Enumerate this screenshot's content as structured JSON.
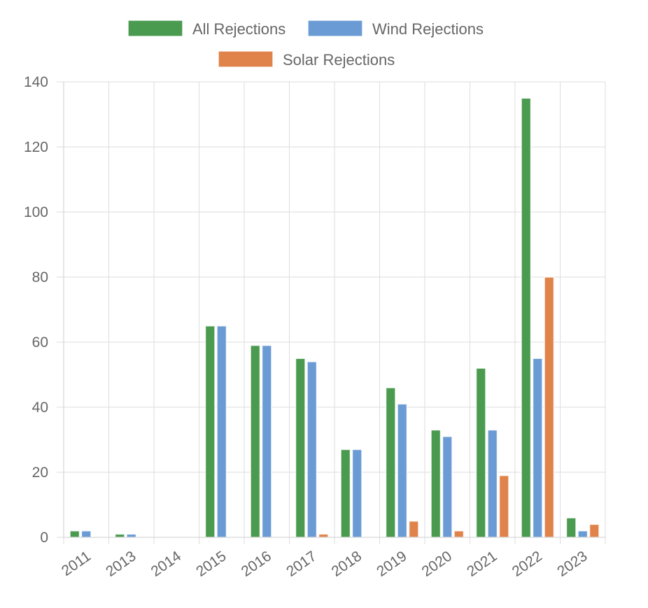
{
  "chart_data": {
    "type": "bar",
    "categories": [
      "2011",
      "2013",
      "2014",
      "2015",
      "2016",
      "2017",
      "2018",
      "2019",
      "2020",
      "2021",
      "2022",
      "2023"
    ],
    "series": [
      {
        "name": "All Rejections",
        "color": "#4a9a4f",
        "values": [
          2,
          1,
          0,
          65,
          59,
          55,
          27,
          46,
          33,
          52,
          135,
          6
        ]
      },
      {
        "name": "Wind Rejections",
        "color": "#6a9bd4",
        "values": [
          2,
          1,
          0,
          65,
          59,
          54,
          27,
          41,
          31,
          33,
          55,
          2
        ]
      },
      {
        "name": "Solar Rejections",
        "color": "#e0834a",
        "values": [
          0,
          0,
          0,
          0,
          0,
          1,
          0,
          5,
          2,
          19,
          80,
          4
        ]
      }
    ],
    "ylim": [
      0,
      140
    ],
    "yticks": [
      "0",
      "20",
      "40",
      "60",
      "80",
      "100",
      "120",
      "140"
    ],
    "grid": true,
    "legend_position": "top"
  }
}
